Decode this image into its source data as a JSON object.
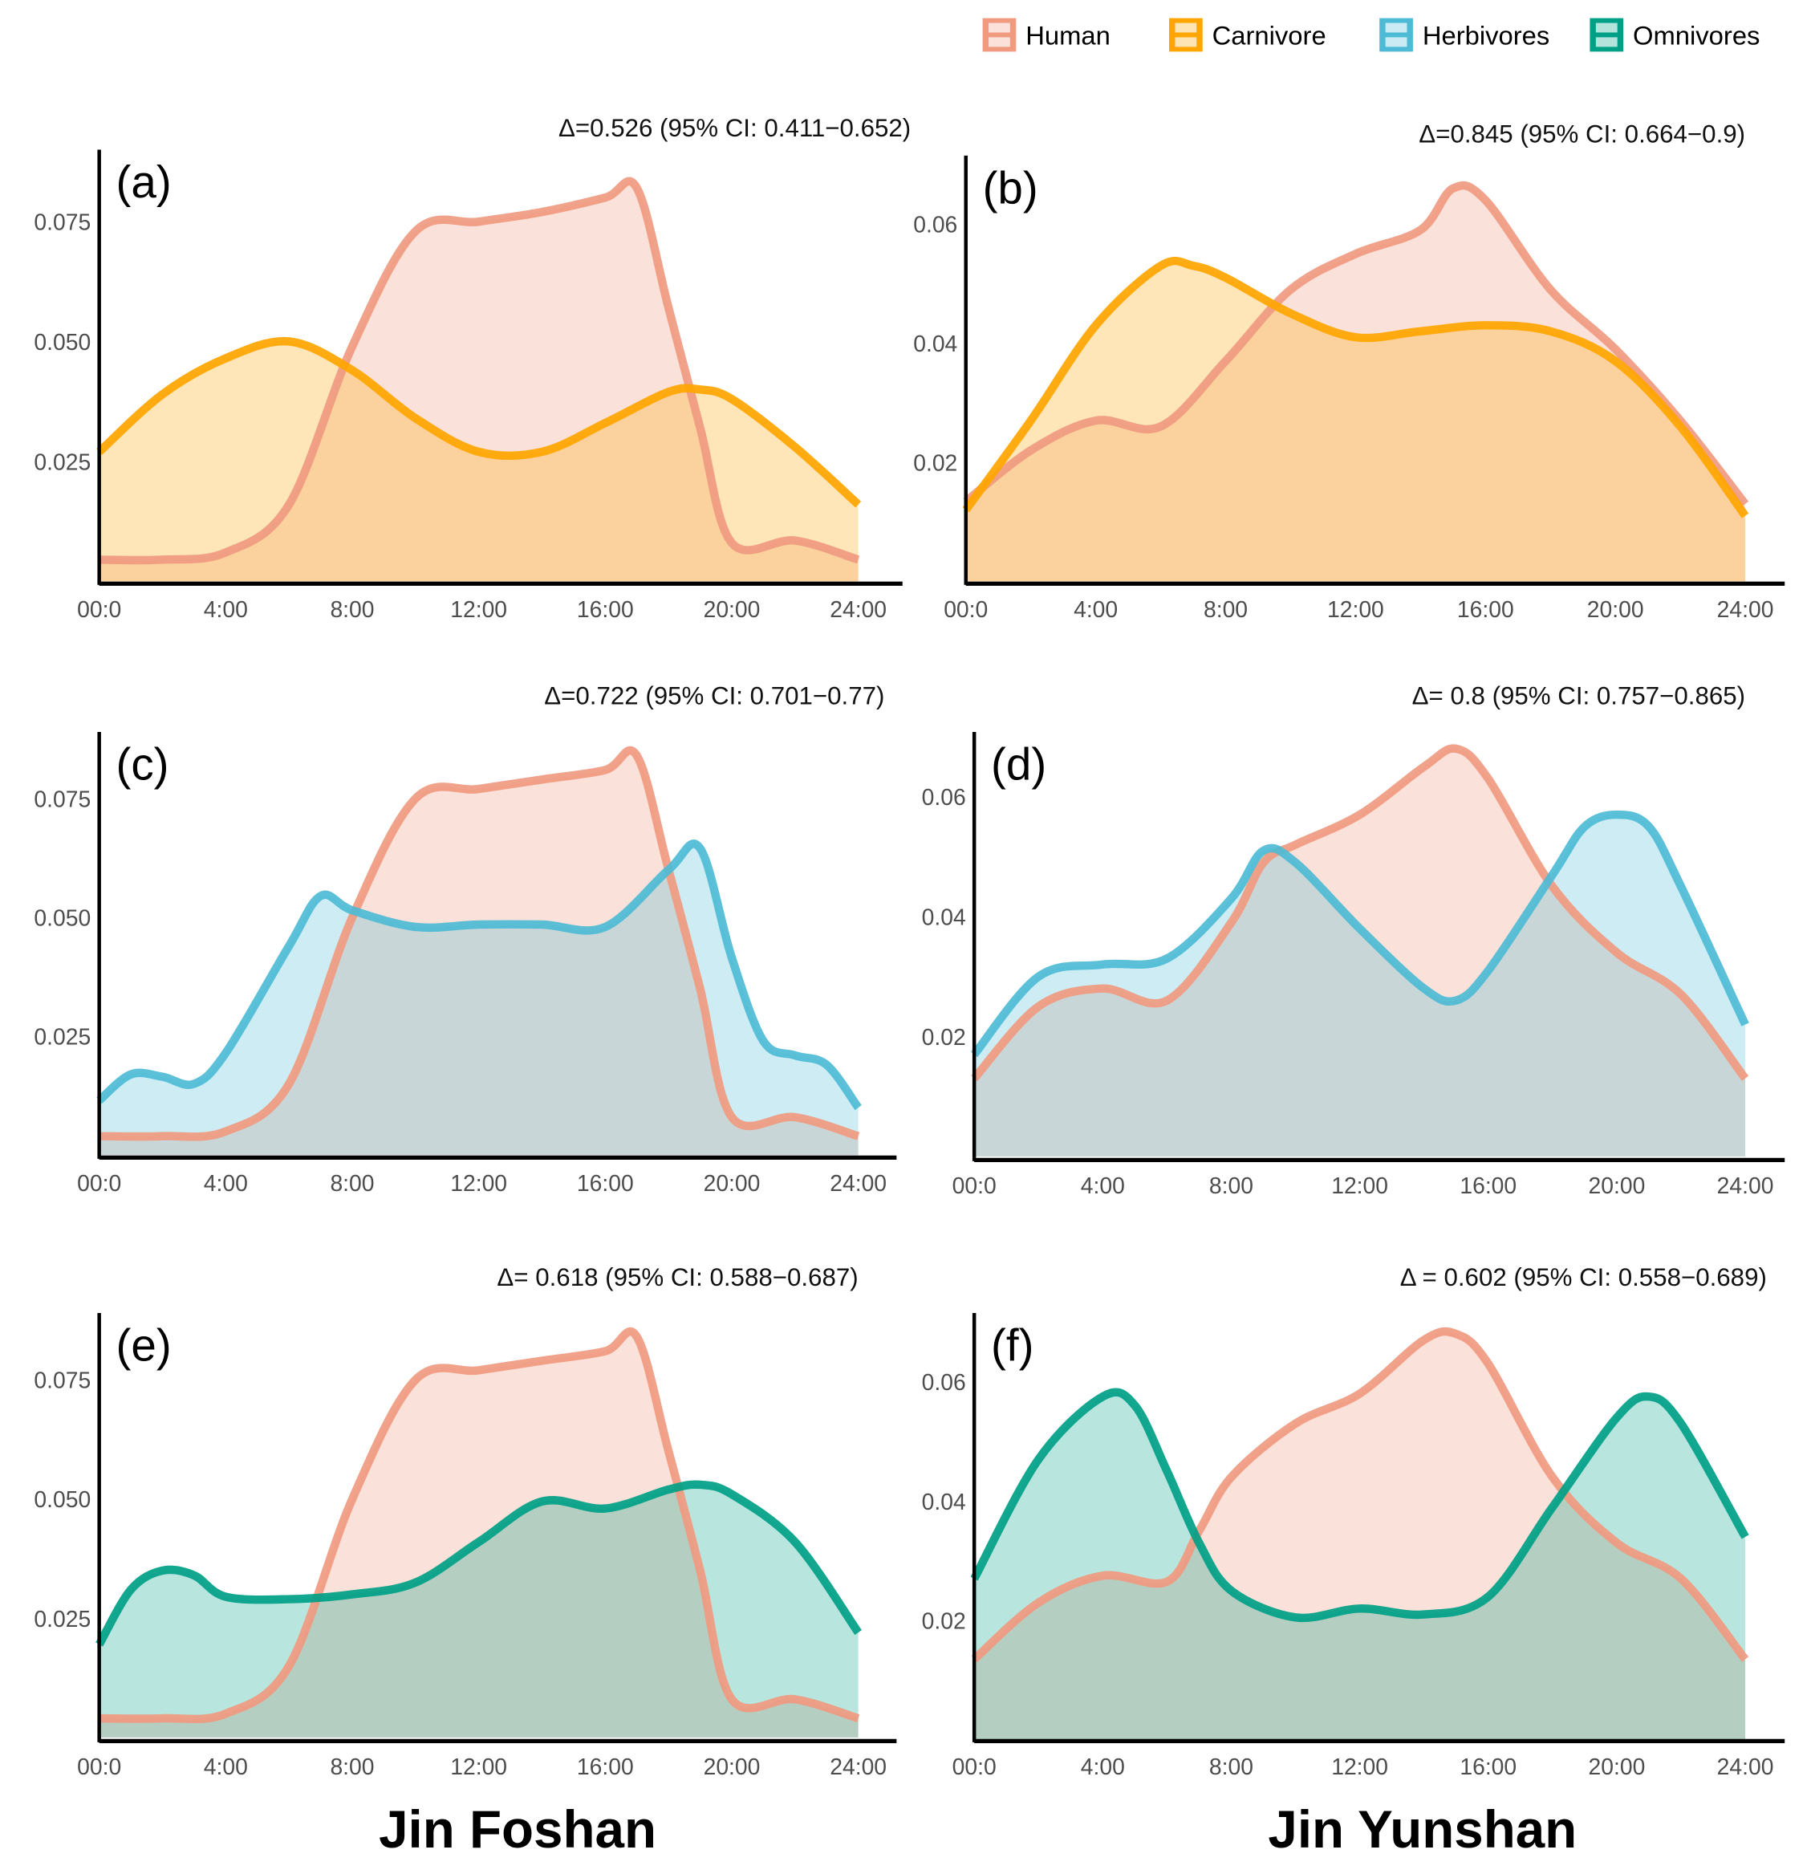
{
  "legend": [
    {
      "name": "Human",
      "line": "#F09A80",
      "fill": "rgba(240,154,128,0.30)"
    },
    {
      "name": "Carnivore",
      "line": "#FFA500",
      "fill": "rgba(255,180,40,0.33)"
    },
    {
      "name": "Herbivores",
      "line": "#4DBBD5",
      "fill": "rgba(77,187,213,0.28)"
    },
    {
      "name": "Omnivores",
      "line": "#00A087",
      "fill": "rgba(0,160,135,0.28)"
    }
  ],
  "sites": [
    "Jin Foshan",
    "Jin Yunshan"
  ],
  "chart_data": [
    {
      "type": "area",
      "panel": "(a)",
      "title": "Δ=0.526 (95% CI: 0.411−0.652)",
      "xlabels": [
        "00:0",
        "4:00",
        "8:00",
        "12:00",
        "16:00",
        "20:00",
        "24:00"
      ],
      "xlim": [
        0,
        24
      ],
      "ylim": [
        0,
        0.09
      ],
      "yticks": [
        "0.025",
        "0.050",
        "0.075"
      ],
      "ytick_values": [
        0.025,
        0.05,
        0.075
      ],
      "series": [
        {
          "name": "Human",
          "x": [
            0,
            2,
            4,
            6,
            8,
            10,
            12,
            14,
            16,
            17,
            18,
            19,
            20,
            22,
            24
          ],
          "y": [
            0.0045,
            0.0045,
            0.006,
            0.016,
            0.049,
            0.073,
            0.075,
            0.077,
            0.08,
            0.082,
            0.057,
            0.032,
            0.008,
            0.0085,
            0.0045
          ]
        },
        {
          "name": "Carnivore",
          "x": [
            0,
            2,
            4,
            6,
            8,
            10,
            12,
            14,
            16,
            18,
            19,
            20,
            22,
            24
          ],
          "y": [
            0.027,
            0.039,
            0.0465,
            0.05,
            0.044,
            0.034,
            0.027,
            0.027,
            0.033,
            0.0395,
            0.04,
            0.038,
            0.028,
            0.016
          ]
        }
      ]
    },
    {
      "type": "area",
      "panel": "(b)",
      "title": "Δ=0.845 (95% CI: 0.664−0.9)",
      "xlabels": [
        "00:0",
        "4:00",
        "8:00",
        "12:00",
        "16:00",
        "20:00",
        "24:00"
      ],
      "xlim": [
        0,
        24
      ],
      "ylim": [
        0,
        0.0715
      ],
      "yticks": [
        "0.02",
        "0.04",
        "0.06"
      ],
      "ytick_values": [
        0.02,
        0.04,
        0.06
      ],
      "series": [
        {
          "name": "Human",
          "x": [
            0,
            2,
            4,
            6,
            8,
            10,
            12,
            14,
            15,
            16,
            18,
            20,
            22,
            24
          ],
          "y": [
            0.0134,
            0.022,
            0.027,
            0.026,
            0.037,
            0.049,
            0.055,
            0.059,
            0.066,
            0.064,
            0.049,
            0.039,
            0.027,
            0.013
          ]
        },
        {
          "name": "Carnivore",
          "x": [
            0,
            2,
            4,
            6,
            7,
            8,
            10,
            12,
            14,
            16,
            18,
            20,
            22,
            24
          ],
          "y": [
            0.012,
            0.027,
            0.043,
            0.053,
            0.053,
            0.051,
            0.045,
            0.041,
            0.042,
            0.043,
            0.042,
            0.037,
            0.026,
            0.011
          ]
        }
      ]
    },
    {
      "type": "area",
      "panel": "(c)",
      "title": "Δ=0.722 (95% CI: 0.701−0.77)",
      "xlabels": [
        "00:0",
        "4:00",
        "8:00",
        "12:00",
        "16:00",
        "20:00",
        "24:00"
      ],
      "xlim": [
        0,
        24
      ],
      "ylim": [
        0,
        0.089
      ],
      "yticks": [
        "0.025",
        "0.050",
        "0.075"
      ],
      "ytick_values": [
        0.025,
        0.05,
        0.075
      ],
      "series": [
        {
          "name": "Human",
          "x": [
            0,
            2,
            4,
            6,
            8,
            10,
            12,
            14,
            16,
            17,
            18,
            19,
            20,
            22,
            24
          ],
          "y": [
            0.004,
            0.004,
            0.005,
            0.015,
            0.05,
            0.075,
            0.077,
            0.079,
            0.081,
            0.084,
            0.06,
            0.035,
            0.008,
            0.008,
            0.004
          ]
        },
        {
          "name": "Herbivores",
          "x": [
            0,
            1,
            2,
            3,
            4,
            6,
            7,
            8,
            10,
            12,
            14,
            16,
            18,
            19,
            20,
            21,
            22,
            23,
            24
          ],
          "y": [
            0.0115,
            0.017,
            0.0165,
            0.015,
            0.0215,
            0.044,
            0.0545,
            0.0515,
            0.048,
            0.0485,
            0.0485,
            0.048,
            0.06,
            0.0645,
            0.0415,
            0.024,
            0.021,
            0.019,
            0.01
          ]
        }
      ]
    },
    {
      "type": "area",
      "panel": "(d)",
      "title": "Δ= 0.8 (95% CI: 0.757−0.865)",
      "xlabels": [
        "00:0",
        "4:00",
        "8:00",
        "12:00",
        "16:00",
        "20:00",
        "24:00"
      ],
      "xlim": [
        0,
        24
      ],
      "ylim": [
        0,
        0.0708
      ],
      "yticks": [
        "0.02",
        "0.04",
        "0.06"
      ],
      "ytick_values": [
        0.02,
        0.04,
        0.06
      ],
      "series": [
        {
          "name": "Human",
          "x": [
            0,
            2,
            4,
            6,
            8,
            9,
            10,
            12,
            14,
            15,
            16,
            18,
            20,
            22,
            24
          ],
          "y": [
            0.013,
            0.025,
            0.028,
            0.026,
            0.039,
            0.049,
            0.052,
            0.057,
            0.065,
            0.068,
            0.063,
            0.045,
            0.034,
            0.027,
            0.013
          ]
        },
        {
          "name": "Herbivores",
          "x": [
            0,
            2,
            4,
            6,
            8,
            9,
            10,
            12,
            14,
            15,
            16,
            18,
            19,
            20,
            21,
            22,
            24
          ],
          "y": [
            0.017,
            0.03,
            0.032,
            0.033,
            0.043,
            0.051,
            0.049,
            0.038,
            0.028,
            0.026,
            0.031,
            0.047,
            0.055,
            0.057,
            0.055,
            0.045,
            0.022
          ]
        }
      ]
    },
    {
      "type": "area",
      "panel": "(e)",
      "title": "Δ= 0.618 (95% CI: 0.588−0.687)",
      "xlabels": [
        "00:0",
        "4:00",
        "8:00",
        "12:00",
        "16:00",
        "20:00",
        "24:00"
      ],
      "xlim": [
        0,
        24
      ],
      "ylim": [
        0,
        0.089
      ],
      "yticks": [
        "0.025",
        "0.050",
        "0.075"
      ],
      "ytick_values": [
        0.025,
        0.05,
        0.075
      ],
      "series": [
        {
          "name": "Human",
          "x": [
            0,
            2,
            4,
            6,
            8,
            10,
            12,
            14,
            16,
            17,
            18,
            19,
            20,
            22,
            24
          ],
          "y": [
            0.004,
            0.004,
            0.005,
            0.015,
            0.05,
            0.075,
            0.077,
            0.079,
            0.081,
            0.084,
            0.06,
            0.035,
            0.008,
            0.008,
            0.004
          ]
        },
        {
          "name": "Omnivores",
          "x": [
            0,
            1,
            2,
            3,
            4,
            6,
            8,
            10,
            12,
            14,
            16,
            18,
            19,
            20,
            22,
            24
          ],
          "y": [
            0.0195,
            0.031,
            0.035,
            0.034,
            0.0295,
            0.029,
            0.03,
            0.0325,
            0.041,
            0.0495,
            0.048,
            0.052,
            0.053,
            0.051,
            0.041,
            0.022
          ]
        }
      ]
    },
    {
      "type": "area",
      "panel": "(f)",
      "title": "Δ = 0.602 (95% CI: 0.558−0.689)",
      "xlabels": [
        "00:0",
        "4:00",
        "8:00",
        "12:00",
        "16:00",
        "20:00",
        "24:00"
      ],
      "xlim": [
        0,
        24
      ],
      "ylim": [
        0,
        0.0715
      ],
      "yticks": [
        "0.02",
        "0.04",
        "0.06"
      ],
      "ytick_values": [
        0.02,
        0.04,
        0.06
      ],
      "series": [
        {
          "name": "Human",
          "x": [
            0,
            2,
            4,
            6,
            7,
            8,
            10,
            12,
            14,
            15,
            16,
            18,
            20,
            22,
            24
          ],
          "y": [
            0.0135,
            0.023,
            0.0275,
            0.0265,
            0.035,
            0.044,
            0.053,
            0.058,
            0.067,
            0.068,
            0.063,
            0.044,
            0.033,
            0.027,
            0.0135
          ]
        },
        {
          "name": "Omnivores",
          "x": [
            0,
            2,
            4,
            5,
            6,
            7,
            8,
            10,
            12,
            14,
            16,
            18,
            20,
            21,
            22,
            24
          ],
          "y": [
            0.027,
            0.047,
            0.0575,
            0.056,
            0.045,
            0.033,
            0.025,
            0.0205,
            0.022,
            0.021,
            0.024,
            0.039,
            0.054,
            0.0575,
            0.053,
            0.034
          ]
        }
      ]
    }
  ]
}
